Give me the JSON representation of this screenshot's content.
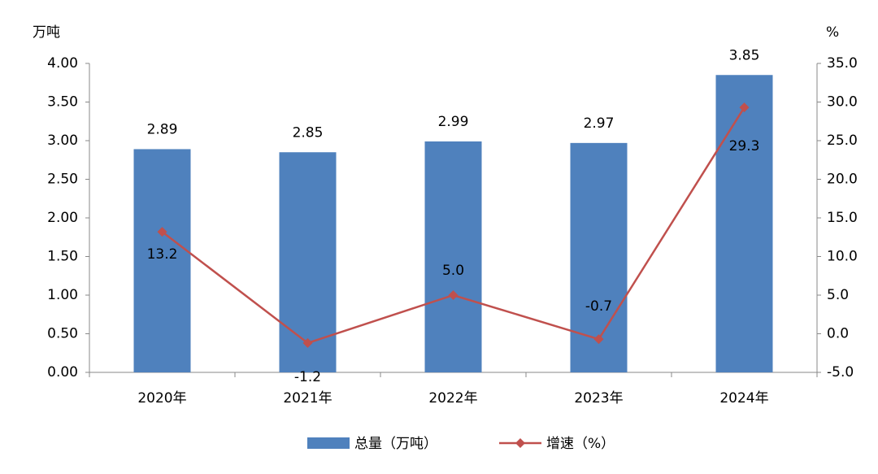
{
  "chart_data": {
    "type": "bar-line",
    "y_label": "万吨",
    "y2_label": "%",
    "categories": [
      "2020年",
      "2021年",
      "2022年",
      "2023年",
      "2024年"
    ],
    "series": [
      {
        "name": "总量（万吨）",
        "type": "bar",
        "color": "#4f81bd",
        "values": [
          2.89,
          2.85,
          2.99,
          2.97,
          3.85
        ]
      },
      {
        "name": "增速（%）",
        "type": "line",
        "axis": "y2",
        "color": "#c0504d",
        "values": [
          13.2,
          -1.2,
          5.0,
          -0.7,
          29.3
        ],
        "value_labels": [
          "13.2",
          "-1.2",
          "5.0",
          "-0.7",
          "29.3"
        ]
      }
    ],
    "ylim": [
      0,
      4
    ],
    "yticks": [
      {
        "value": 0,
        "label": "0.00"
      },
      {
        "value": 0.5,
        "label": "0.50"
      },
      {
        "value": 1,
        "label": "1.00"
      },
      {
        "value": 1.5,
        "label": "1.50"
      },
      {
        "value": 2,
        "label": "2.00"
      },
      {
        "value": 2.5,
        "label": "2.50"
      },
      {
        "value": 3,
        "label": "3.00"
      },
      {
        "value": 3.5,
        "label": "3.50"
      },
      {
        "value": 4,
        "label": "4.00"
      }
    ],
    "y2lim": [
      -5,
      35
    ],
    "y2ticks": [
      {
        "value": -5,
        "label": "-5.0"
      },
      {
        "value": 0,
        "label": "0.0"
      },
      {
        "value": 5,
        "label": "5.0"
      },
      {
        "value": 10,
        "label": "10.0"
      },
      {
        "value": 15,
        "label": "15.0"
      },
      {
        "value": 20,
        "label": "20.0"
      },
      {
        "value": 25,
        "label": "25.0"
      },
      {
        "value": 30,
        "label": "30.0"
      },
      {
        "value": 35,
        "label": "35.0"
      }
    ]
  }
}
